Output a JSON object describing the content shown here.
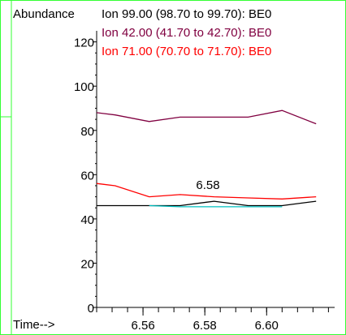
{
  "chart_data": {
    "type": "line",
    "ylabel": "Abundance",
    "xlabel": "Time-->",
    "xlim": [
      6.545,
      6.622
    ],
    "ylim": [
      0,
      125
    ],
    "x_ticks": [
      6.56,
      6.58,
      6.6
    ],
    "x_tick_labels": [
      "6.56",
      "6.58",
      "6.60"
    ],
    "x_minor_step": 0.005,
    "y_ticks": [
      0,
      20,
      40,
      60,
      80,
      100,
      120
    ],
    "y_tick_labels": [
      "0",
      "20",
      "40",
      "60",
      "80",
      "100",
      "120"
    ],
    "legend": [
      {
        "text": "Ion  99.00 (98.70 to 99.70): BE0",
        "color": "#000000"
      },
      {
        "text": "Ion  42.00 (41.70 to 42.70): BE0",
        "color": "#800040"
      },
      {
        "text": "Ion  71.00 (70.70 to 71.70): BE0",
        "color": "#ff0000"
      }
    ],
    "annotations": [
      {
        "text": "6.58",
        "x": 6.581,
        "y": 51
      }
    ],
    "series": [
      {
        "color": "#800040",
        "x": [
          6.545,
          6.551,
          6.562,
          6.572,
          6.583,
          6.594,
          6.605,
          6.616
        ],
        "values": [
          88,
          87,
          84,
          86,
          86,
          86,
          89,
          83
        ]
      },
      {
        "color": "#ff0000",
        "x": [
          6.545,
          6.551,
          6.562,
          6.572,
          6.583,
          6.594,
          6.605,
          6.616
        ],
        "values": [
          56,
          55,
          50,
          51,
          50,
          49.5,
          49,
          50
        ]
      },
      {
        "color": "#000000",
        "x": [
          6.545,
          6.551,
          6.562,
          6.572,
          6.583,
          6.594,
          6.605,
          6.616
        ],
        "values": [
          46,
          46,
          46,
          46,
          48,
          46,
          46,
          48
        ]
      },
      {
        "color": "#00c0c0",
        "x": [
          6.562,
          6.572,
          6.583,
          6.594,
          6.605
        ],
        "values": [
          46,
          45.5,
          45.5,
          45.5,
          45.5
        ]
      }
    ]
  }
}
